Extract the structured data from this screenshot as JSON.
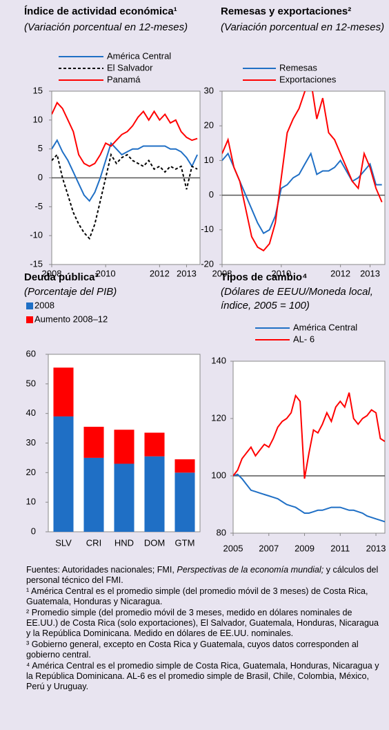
{
  "chart_data": [
    {
      "type": "line",
      "title": "Índice de actividad económica¹",
      "subtitle": "(Variación porcentual en 12-meses)",
      "x": [
        2008,
        2008.2,
        2008.4,
        2008.6,
        2008.8,
        2009,
        2009.2,
        2009.4,
        2009.6,
        2009.8,
        2010,
        2010.2,
        2010.4,
        2010.6,
        2010.8,
        2011,
        2011.2,
        2011.4,
        2011.6,
        2011.8,
        2012,
        2012.2,
        2012.4,
        2012.6,
        2012.8,
        2013,
        2013.2,
        2013.4
      ],
      "series": [
        {
          "name": "América Central",
          "color": "#1f6fc5",
          "style": "solid",
          "values": [
            5,
            6.5,
            4.5,
            3,
            1,
            -1,
            -3,
            -4,
            -2.5,
            0,
            3,
            6,
            5,
            4,
            4.5,
            5,
            5,
            5.5,
            5.5,
            5.5,
            5.5,
            5.5,
            5,
            5,
            4.5,
            3.5,
            2,
            4
          ]
        },
        {
          "name": "El Salvador",
          "color": "#000000",
          "style": "dashed",
          "values": [
            3,
            4,
            0,
            -3,
            -6,
            -8,
            -9.5,
            -10.5,
            -8,
            -4,
            0,
            4,
            2.5,
            3.5,
            4,
            3,
            2.5,
            2,
            3,
            1.5,
            2,
            1,
            2,
            1.5,
            2,
            -2,
            2,
            1.5
          ]
        },
        {
          "name": "Panamá",
          "color": "#ff0000",
          "style": "solid",
          "values": [
            11,
            13,
            12,
            10,
            8,
            4,
            2.5,
            2,
            2.5,
            4,
            6,
            5.5,
            6.5,
            7.5,
            8,
            9,
            10.5,
            11.5,
            10,
            11.5,
            10,
            11,
            9.5,
            10,
            8,
            7,
            6.5,
            6.8
          ]
        }
      ],
      "xlim": [
        2008,
        2013.5
      ],
      "xticks": [
        2008,
        2010,
        2012,
        2013
      ],
      "ylim": [
        -15,
        15
      ],
      "yticks": [
        -15,
        -10,
        -5,
        0,
        5,
        10,
        15
      ],
      "reference_line": 0
    },
    {
      "type": "line",
      "title": "Remesas y exportaciones²",
      "subtitle": "(Variación porcentual en 12-meses)",
      "x": [
        2008,
        2008.2,
        2008.4,
        2008.6,
        2008.8,
        2009,
        2009.2,
        2009.4,
        2009.6,
        2009.8,
        2010,
        2010.2,
        2010.4,
        2010.6,
        2010.8,
        2011,
        2011.2,
        2011.4,
        2011.6,
        2011.8,
        2012,
        2012.2,
        2012.4,
        2012.6,
        2012.8,
        2013,
        2013.2,
        2013.4
      ],
      "series": [
        {
          "name": "Remesas",
          "color": "#1f6fc5",
          "style": "solid",
          "values": [
            10,
            12,
            8,
            4,
            0,
            -4,
            -8,
            -11,
            -10,
            -6,
            2,
            3,
            5,
            6,
            9,
            12,
            6,
            7,
            7,
            8,
            10,
            7,
            4,
            5,
            7,
            9,
            3,
            3
          ]
        },
        {
          "name": "Exportaciones",
          "color": "#ff0000",
          "style": "solid",
          "values": [
            12,
            16,
            8,
            4,
            -4,
            -12,
            -15,
            -16,
            -14,
            -8,
            5,
            18,
            22,
            25,
            30,
            33,
            22,
            28,
            18,
            16,
            12,
            8,
            4,
            2,
            12,
            8,
            2,
            -2
          ]
        }
      ],
      "xlim": [
        2008,
        2013.5
      ],
      "xticks": [
        2008,
        2010,
        2012,
        2013
      ],
      "ylim": [
        -20,
        30
      ],
      "yticks": [
        -20,
        -10,
        0,
        10,
        20,
        30
      ],
      "reference_line": 0
    },
    {
      "type": "stacked_bar",
      "title": "Deuda pública³",
      "subtitle": "(Porcentaje del PIB)",
      "categories": [
        "SLV",
        "CRI",
        "HND",
        "DOM",
        "GTM"
      ],
      "series": [
        {
          "name": "2008",
          "color": "#1f6fc5",
          "values": [
            39,
            25,
            23,
            25.5,
            20
          ]
        },
        {
          "name": "Aumento 2008–12",
          "color": "#ff0000",
          "values": [
            16.5,
            10.5,
            11.5,
            8,
            4.5
          ]
        }
      ],
      "ylim": [
        0,
        60
      ],
      "yticks": [
        0,
        10,
        20,
        30,
        40,
        50,
        60
      ]
    },
    {
      "type": "line",
      "title": "Tipos de cambio⁴",
      "subtitle": "(Dólares de EEUU/Moneda local, índice, 2005  = 100)",
      "x": [
        2005,
        2005.25,
        2005.5,
        2005.75,
        2006,
        2006.25,
        2006.5,
        2006.75,
        2007,
        2007.25,
        2007.5,
        2007.75,
        2008,
        2008.25,
        2008.5,
        2008.75,
        2009,
        2009.25,
        2009.5,
        2009.75,
        2010,
        2010.25,
        2010.5,
        2010.75,
        2011,
        2011.25,
        2011.5,
        2011.75,
        2012,
        2012.25,
        2012.5,
        2012.75,
        2013,
        2013.25,
        2013.5
      ],
      "series": [
        {
          "name": "América Central",
          "color": "#1f6fc5",
          "style": "solid",
          "values": [
            100,
            100.5,
            99,
            97,
            95,
            94.5,
            94,
            93.5,
            93,
            92.5,
            92,
            91,
            90,
            89.5,
            89,
            88,
            87,
            87,
            87.5,
            88,
            88,
            88.5,
            89,
            89,
            89,
            88.5,
            88,
            88,
            87.5,
            87,
            86,
            85.5,
            85,
            84.5,
            84
          ]
        },
        {
          "name": "AL- 6",
          "color": "#ff0000",
          "style": "solid",
          "values": [
            100,
            102,
            106,
            108,
            110,
            107,
            109,
            111,
            110,
            113,
            117,
            119,
            120,
            122,
            128,
            126,
            99,
            108,
            116,
            115,
            118,
            122,
            119,
            124,
            126,
            124,
            129,
            120,
            118,
            120,
            121,
            123,
            122,
            113,
            112
          ]
        }
      ],
      "xlim": [
        2005,
        2013.5
      ],
      "xticks": [
        2005,
        2007,
        2009,
        2011,
        2013
      ],
      "ylim": [
        80,
        140
      ],
      "yticks": [
        80,
        100,
        120,
        140
      ],
      "reference_line": 100
    }
  ],
  "footnotes": {
    "sources": {
      "prefix": "Fuentes: Autoridades  nacionales;  FMI, ",
      "italic": "Perspectivas de la economía mundial;",
      "suffix": " y cálculos del personal técnico del FMI."
    },
    "notes": [
      "¹ América Central es el promedio simple (del promedio móvil de 3 meses) de Costa Rica, Guatemala,  Honduras  y Nicaragua.",
      "² Promedio simple  (del promedio móvil de 3 meses, medido en dólares nominales de EE.UU.) de Costa Rica (solo exportaciones),  El Salvador, Guatemala, Honduras,  Nicaragua y la República Dominicana. Medido en dólares de  EE.UU. nominales.",
      "³ Gobierno general, excepto en Costa Rica y  Guatemala,  cuyos datos corresponden al gobierno central.",
      "⁴ América Central es el promedio  simple de Costa Rica, Guatemala, Honduras, Nicaragua y  la República Dominicana. AL-6 es el promedio simple de Brasil, Chile, Colombia, México, Perú y Uruguay."
    ]
  }
}
